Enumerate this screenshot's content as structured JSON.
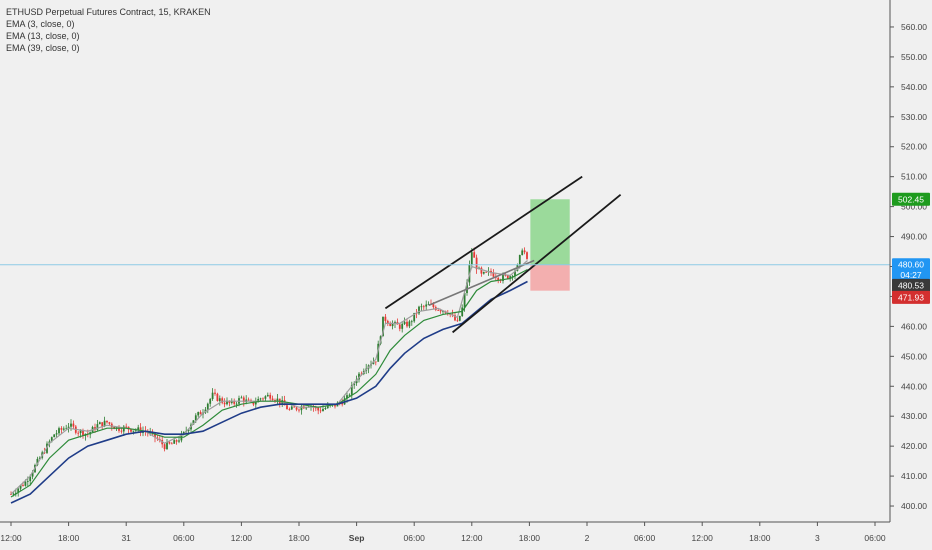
{
  "header": {
    "symbol_line": "ETHUSD Perpetual Futures Contract, 15, KRAKEN",
    "indicators": [
      "EMA (3, close, 0)",
      "EMA (13, close, 0)",
      "EMA (39, close, 0)"
    ]
  },
  "colors": {
    "background": "#f0f0f0",
    "up_candle": "#2e7d32",
    "down_candle": "#e53935",
    "ema3": "#9e9e9e",
    "ema13": "#2e8b3a",
    "ema39": "#1f3c88",
    "trendline": "#1a1a1a",
    "target_zone": "#7fd37f",
    "stop_zone": "#f49a9a",
    "price_line": "#8ecae6"
  },
  "price_badges": [
    {
      "label": "502.45",
      "value": 502.45,
      "color": "#1e9b1e"
    },
    {
      "label": "480.60",
      "value": 480.6,
      "color": "#2196f3"
    },
    {
      "label": "04:27",
      "value": 477.1,
      "color": "#2196f3"
    },
    {
      "label": "480.53",
      "value": 473.7,
      "color": "#3a3a3a"
    },
    {
      "label": "471.93",
      "value": 469.7,
      "color": "#d32f2f"
    }
  ],
  "chart_data": {
    "type": "candlestick",
    "title": "ETHUSD Perpetual Futures Contract, 15, KRAKEN",
    "y_axis": {
      "ticks": [
        400,
        410,
        420,
        430,
        440,
        450,
        460,
        470,
        480,
        490,
        500,
        510,
        520,
        530,
        540,
        550,
        560
      ],
      "range": [
        395,
        565
      ],
      "position": "right"
    },
    "x_axis": {
      "ticks": [
        "12:00",
        "18:00",
        "31",
        "06:00",
        "12:00",
        "18:00",
        "Sep",
        "06:00",
        "12:00",
        "18:00",
        "2",
        "06:00",
        "12:00",
        "18:00",
        "3",
        "06:00"
      ],
      "bold_ticks": [
        "Sep"
      ],
      "hours_per_tick": 6
    },
    "last_price": 480.6,
    "close_series": [
      {
        "t": 0,
        "v": 404
      },
      {
        "t": 1.5,
        "v": 408
      },
      {
        "t": 3,
        "v": 416
      },
      {
        "t": 4.5,
        "v": 424
      },
      {
        "t": 6,
        "v": 427
      },
      {
        "t": 7,
        "v": 425
      },
      {
        "t": 8,
        "v": 424
      },
      {
        "t": 9,
        "v": 427
      },
      {
        "t": 10,
        "v": 428
      },
      {
        "t": 11,
        "v": 426
      },
      {
        "t": 12,
        "v": 426
      },
      {
        "t": 14,
        "v": 425
      },
      {
        "t": 15,
        "v": 423
      },
      {
        "t": 16,
        "v": 420
      },
      {
        "t": 17,
        "v": 421
      },
      {
        "t": 18,
        "v": 424
      },
      {
        "t": 19,
        "v": 429
      },
      {
        "t": 20,
        "v": 432
      },
      {
        "t": 21,
        "v": 437
      },
      {
        "t": 22,
        "v": 435
      },
      {
        "t": 23,
        "v": 434
      },
      {
        "t": 24,
        "v": 436
      },
      {
        "t": 25,
        "v": 434
      },
      {
        "t": 26,
        "v": 436
      },
      {
        "t": 27,
        "v": 437
      },
      {
        "t": 28,
        "v": 435
      },
      {
        "t": 29,
        "v": 432
      },
      {
        "t": 30,
        "v": 433
      },
      {
        "t": 31,
        "v": 434
      },
      {
        "t": 32,
        "v": 432
      },
      {
        "t": 33,
        "v": 433
      },
      {
        "t": 34,
        "v": 434
      },
      {
        "t": 35,
        "v": 436
      },
      {
        "t": 36,
        "v": 443
      },
      {
        "t": 37,
        "v": 447
      },
      {
        "t": 38,
        "v": 449
      },
      {
        "t": 38.8,
        "v": 463
      },
      {
        "t": 39.5,
        "v": 461
      },
      {
        "t": 40.5,
        "v": 460
      },
      {
        "t": 41.5,
        "v": 461
      },
      {
        "t": 42.5,
        "v": 466
      },
      {
        "t": 43.5,
        "v": 467
      },
      {
        "t": 44.5,
        "v": 466
      },
      {
        "t": 45.5,
        "v": 465
      },
      {
        "t": 46,
        "v": 463
      },
      {
        "t": 46.5,
        "v": 461
      },
      {
        "t": 47,
        "v": 466
      },
      {
        "t": 47.5,
        "v": 475
      },
      {
        "t": 48,
        "v": 485
      },
      {
        "t": 48.5,
        "v": 480
      },
      {
        "t": 49,
        "v": 477
      },
      {
        "t": 50,
        "v": 478
      },
      {
        "t": 51,
        "v": 476
      },
      {
        "t": 52,
        "v": 477
      },
      {
        "t": 52.8,
        "v": 480
      },
      {
        "t": 53.3,
        "v": 487
      },
      {
        "t": 53.8,
        "v": 481
      }
    ],
    "ema_series": [
      {
        "name": "EMA (3, close, 0)",
        "points": [
          {
            "t": 0,
            "v": 404
          },
          {
            "t": 2,
            "v": 410
          },
          {
            "t": 4,
            "v": 421
          },
          {
            "t": 6,
            "v": 426
          },
          {
            "t": 8,
            "v": 425
          },
          {
            "t": 10,
            "v": 427
          },
          {
            "t": 12,
            "v": 426
          },
          {
            "t": 14,
            "v": 425
          },
          {
            "t": 16,
            "v": 421
          },
          {
            "t": 18,
            "v": 424
          },
          {
            "t": 20,
            "v": 431
          },
          {
            "t": 22,
            "v": 435
          },
          {
            "t": 24,
            "v": 435
          },
          {
            "t": 26,
            "v": 435
          },
          {
            "t": 28,
            "v": 435
          },
          {
            "t": 30,
            "v": 433
          },
          {
            "t": 32,
            "v": 433
          },
          {
            "t": 34,
            "v": 434
          },
          {
            "t": 36,
            "v": 442
          },
          {
            "t": 38,
            "v": 449
          },
          {
            "t": 39,
            "v": 461
          },
          {
            "t": 40.5,
            "v": 461
          },
          {
            "t": 42.5,
            "v": 465
          },
          {
            "t": 44.5,
            "v": 466
          },
          {
            "t": 46.5,
            "v": 463
          },
          {
            "t": 48,
            "v": 480
          },
          {
            "t": 50,
            "v": 478
          },
          {
            "t": 52,
            "v": 477
          },
          {
            "t": 53.8,
            "v": 482
          }
        ]
      },
      {
        "name": "EMA (13, close, 0)",
        "points": [
          {
            "t": 0,
            "v": 403
          },
          {
            "t": 2,
            "v": 407
          },
          {
            "t": 4,
            "v": 416
          },
          {
            "t": 6,
            "v": 422
          },
          {
            "t": 8,
            "v": 424
          },
          {
            "t": 10,
            "v": 426
          },
          {
            "t": 12,
            "v": 426
          },
          {
            "t": 14,
            "v": 425
          },
          {
            "t": 16,
            "v": 423
          },
          {
            "t": 18,
            "v": 423
          },
          {
            "t": 20,
            "v": 427
          },
          {
            "t": 22,
            "v": 432
          },
          {
            "t": 24,
            "v": 434
          },
          {
            "t": 26,
            "v": 435
          },
          {
            "t": 28,
            "v": 435
          },
          {
            "t": 30,
            "v": 434
          },
          {
            "t": 32,
            "v": 433
          },
          {
            "t": 34,
            "v": 434
          },
          {
            "t": 36,
            "v": 438
          },
          {
            "t": 38,
            "v": 444
          },
          {
            "t": 39.5,
            "v": 452
          },
          {
            "t": 41,
            "v": 457
          },
          {
            "t": 43,
            "v": 462
          },
          {
            "t": 45,
            "v": 464
          },
          {
            "t": 47,
            "v": 465
          },
          {
            "t": 48.5,
            "v": 472
          },
          {
            "t": 50,
            "v": 475
          },
          {
            "t": 52,
            "v": 476
          },
          {
            "t": 53.8,
            "v": 479
          }
        ]
      },
      {
        "name": "EMA (39, close, 0)",
        "points": [
          {
            "t": 0,
            "v": 401
          },
          {
            "t": 2,
            "v": 404
          },
          {
            "t": 4,
            "v": 410
          },
          {
            "t": 6,
            "v": 416
          },
          {
            "t": 8,
            "v": 420
          },
          {
            "t": 10,
            "v": 422
          },
          {
            "t": 12,
            "v": 424
          },
          {
            "t": 14,
            "v": 425
          },
          {
            "t": 16,
            "v": 424
          },
          {
            "t": 18,
            "v": 424
          },
          {
            "t": 20,
            "v": 425
          },
          {
            "t": 22,
            "v": 428
          },
          {
            "t": 24,
            "v": 431
          },
          {
            "t": 26,
            "v": 433
          },
          {
            "t": 28,
            "v": 434
          },
          {
            "t": 30,
            "v": 434
          },
          {
            "t": 32,
            "v": 434
          },
          {
            "t": 34,
            "v": 434
          },
          {
            "t": 36,
            "v": 436
          },
          {
            "t": 38,
            "v": 440
          },
          {
            "t": 39.5,
            "v": 446
          },
          {
            "t": 41,
            "v": 451
          },
          {
            "t": 43,
            "v": 456
          },
          {
            "t": 45,
            "v": 459
          },
          {
            "t": 47,
            "v": 461
          },
          {
            "t": 48.5,
            "v": 465
          },
          {
            "t": 50,
            "v": 469
          },
          {
            "t": 52,
            "v": 472
          },
          {
            "t": 53.8,
            "v": 475
          }
        ]
      }
    ],
    "trendlines": [
      {
        "name": "upper-channel-line",
        "from": {
          "t": 39,
          "v": 466
        },
        "to": {
          "t": 59.5,
          "v": 510
        }
      },
      {
        "name": "lower-channel-line",
        "from": {
          "t": 46,
          "v": 458
        },
        "to": {
          "t": 63.5,
          "v": 504
        }
      },
      {
        "name": "mid-channel-line",
        "from": {
          "t": 43.5,
          "v": 467
        },
        "to": {
          "t": 54.5,
          "v": 482
        }
      }
    ],
    "position": {
      "type": "long",
      "start_t": 54.1,
      "end_t": 58.2,
      "entry": 480.6,
      "target": 502.45,
      "stop": 471.93
    }
  }
}
